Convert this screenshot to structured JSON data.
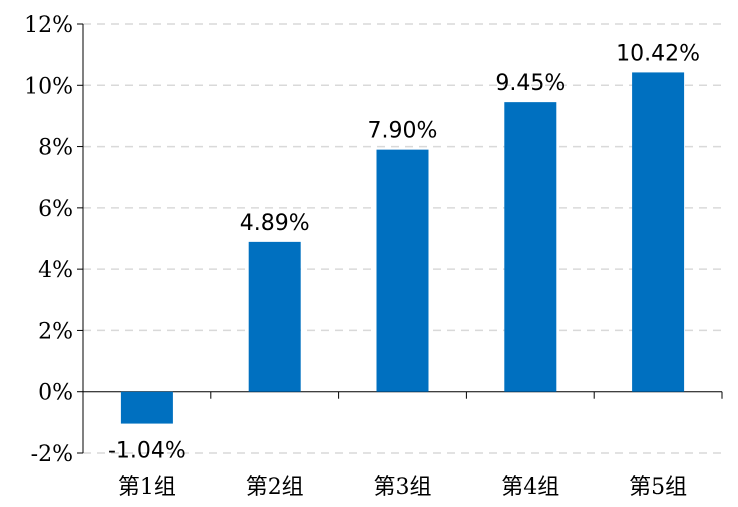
{
  "chart_data": {
    "type": "bar",
    "categories": [
      "第1组",
      "第2组",
      "第3组",
      "第4组",
      "第5组"
    ],
    "values": [
      -1.04,
      4.89,
      7.9,
      9.45,
      10.42
    ],
    "data_labels": [
      "-1.04%",
      "4.89%",
      "7.90%",
      "9.45%",
      "10.42%"
    ],
    "y_ticks": [
      -2,
      0,
      2,
      4,
      6,
      8,
      10,
      12
    ],
    "y_tick_labels": [
      "-2%",
      "0%",
      "2%",
      "4%",
      "6%",
      "8%",
      "10%",
      "12%"
    ],
    "ylim": [
      -2,
      12
    ],
    "grid": true,
    "colors": {
      "bar": "#0070c0",
      "grid": "#d9d9d9",
      "axis": "#000000"
    }
  }
}
